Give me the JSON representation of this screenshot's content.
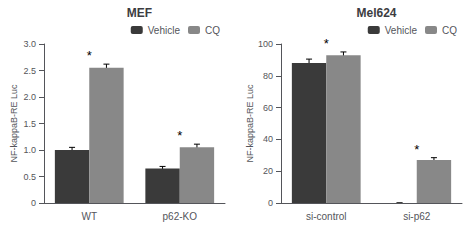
{
  "chart_data": [
    {
      "type": "bar",
      "title": "MEF",
      "ylabel": "NF-kappaB-RE Luc",
      "categories": [
        "WT",
        "p62-KO"
      ],
      "series": [
        {
          "name": "Vehicle",
          "color": "#3a3a3a",
          "values": [
            1.0,
            0.65
          ],
          "errors": [
            0.05,
            0.04
          ]
        },
        {
          "name": "CQ",
          "color": "#888888",
          "values": [
            2.55,
            1.05
          ],
          "errors": [
            0.07,
            0.06
          ]
        }
      ],
      "ylim": [
        0,
        3.0
      ],
      "yticks": [
        0,
        0.5,
        {
          "value": 1.0,
          "label": "1.0"
        },
        1.5,
        {
          "value": 2.0,
          "label": "2.0"
        },
        2.5,
        {
          "value": 3.0,
          "label": "3.0"
        }
      ],
      "annotations": [
        {
          "text": "*",
          "category": "WT"
        },
        {
          "text": "*",
          "category": "p62-KO"
        }
      ],
      "legend": "upper right",
      "grid": false
    },
    {
      "type": "bar",
      "title": "Mel624",
      "ylabel": "NF-kappaB-RE Luc",
      "categories": [
        "si-control",
        "si-p62"
      ],
      "series": [
        {
          "name": "Vehicle",
          "color": "#3a3a3a",
          "values": [
            88,
            0
          ],
          "errors": [
            2.5,
            0
          ]
        },
        {
          "name": "CQ",
          "color": "#888888",
          "values": [
            93,
            27
          ],
          "errors": [
            2.0,
            1.5
          ]
        }
      ],
      "ylim": [
        0,
        100
      ],
      "yticks": [
        0,
        20,
        40,
        60,
        80,
        100
      ],
      "annotations": [
        {
          "text": "*",
          "category": "si-control"
        },
        {
          "text": "*",
          "category": "si-p62"
        }
      ],
      "legend": "upper right",
      "grid": false
    }
  ]
}
